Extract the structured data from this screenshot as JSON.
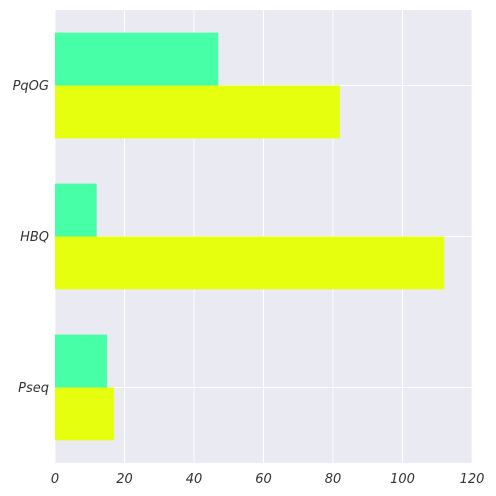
{
  "chart_data": {
    "type": "bar",
    "orientation": "horizontal",
    "categories": [
      "PqOG",
      "HBQ",
      "Pseq"
    ],
    "series": [
      {
        "values": [
          47,
          12,
          15
        ],
        "color": "#47ffa6"
      },
      {
        "values": [
          82,
          112,
          17
        ],
        "color": "#e6ff0f"
      }
    ],
    "title": "",
    "xlabel": "",
    "ylabel": "",
    "xlim": [
      0,
      120
    ],
    "xticks": [
      0,
      20,
      40,
      60,
      80,
      100,
      120
    ],
    "grid": true,
    "legend": "none"
  },
  "colors": {
    "plot_background": "#eaeaf2",
    "grid": "#ffffff",
    "text": "#333333"
  }
}
